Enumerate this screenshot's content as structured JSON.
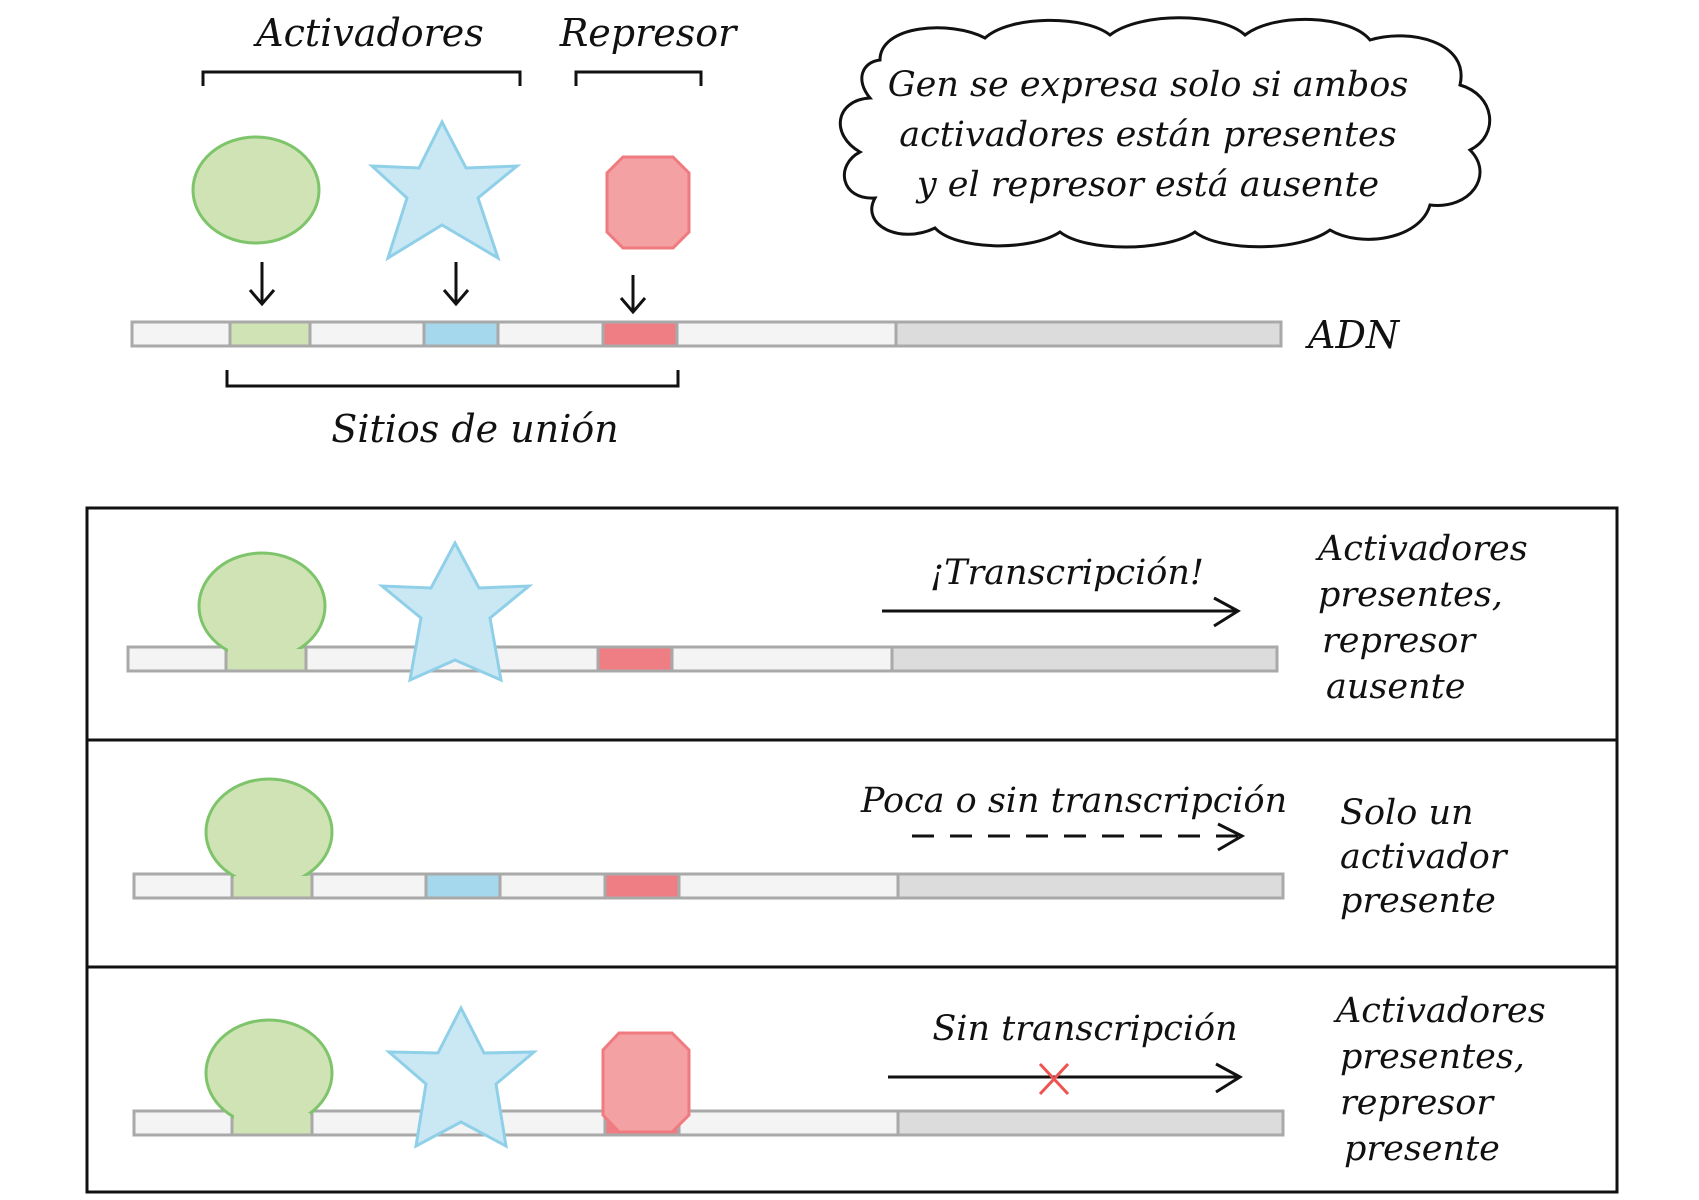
{
  "top": {
    "activators_label": "Activadores",
    "repressor_label": "Represor",
    "dna_label": "ADN",
    "binding_sites_label": "Sitios de unión"
  },
  "cloud": {
    "line1": "Gen se expresa solo si ambos",
    "line2": "activadores están presentes",
    "line3": "y el represor está ausente"
  },
  "panels": [
    {
      "arrow_label": "¡Transcripción!",
      "arrow_style": "solid",
      "condition": [
        "Activadores",
        "presentes,",
        "represor",
        "ausente"
      ]
    },
    {
      "arrow_label": "Poca o sin transcripción",
      "arrow_style": "dashed",
      "condition": [
        "Solo un",
        "activador",
        "presente"
      ]
    },
    {
      "arrow_label": "Sin transcripción",
      "arrow_style": "blocked",
      "condition": [
        "Activadores",
        "presentes,",
        "represor",
        "presente"
      ]
    }
  ],
  "colors": {
    "green_fill": "#cfe3b5",
    "green_stroke": "#7dc46a",
    "blue_fill": "#c9e8f4",
    "blue_stroke": "#8fd0e8",
    "blue_site": "#a5d8ec",
    "red_fill": "#f4a1a4",
    "red_stroke": "#ef7b80",
    "red_site": "#ee7e83",
    "dna_fill": "#f4f4f4",
    "dna_stroke": "#a9a9a9",
    "gene_fill": "#dcdcdc",
    "block_mark": "#ef5350"
  }
}
